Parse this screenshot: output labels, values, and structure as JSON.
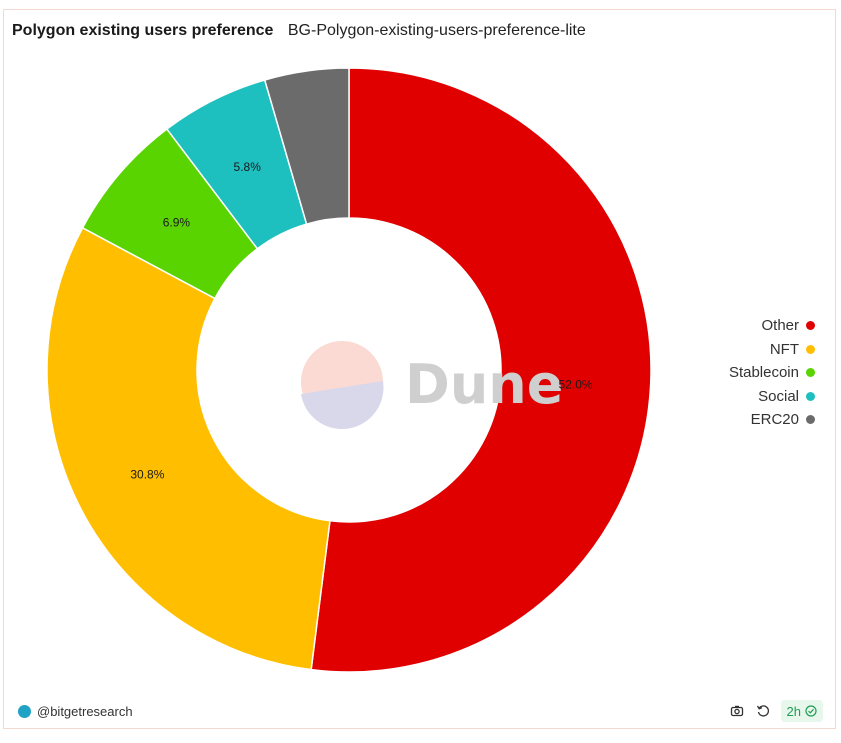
{
  "header": {
    "title": "Polygon existing users preference",
    "subtitle": "BG-Polygon-existing-users-preference-lite"
  },
  "chart_data": {
    "type": "pie",
    "donut": true,
    "categories": [
      "Other",
      "NFT",
      "Stablecoin",
      "Social",
      "ERC20"
    ],
    "values": [
      52.0,
      30.8,
      6.9,
      5.8,
      4.5
    ],
    "data_labels": [
      "52.0%",
      "30.8%",
      "6.9%",
      "5.8%",
      ""
    ],
    "colors": [
      "#e00000",
      "#ffbf00",
      "#5ad400",
      "#1ebfbf",
      "#6b6b6b"
    ],
    "legend_position": "right",
    "start": "top, clockwise"
  },
  "watermark": {
    "text": "Dune"
  },
  "footer": {
    "author": "@bitgetresearch",
    "refresh_age": "2h",
    "icons": [
      "camera-icon",
      "refresh-icon",
      "check-circle-icon"
    ]
  }
}
